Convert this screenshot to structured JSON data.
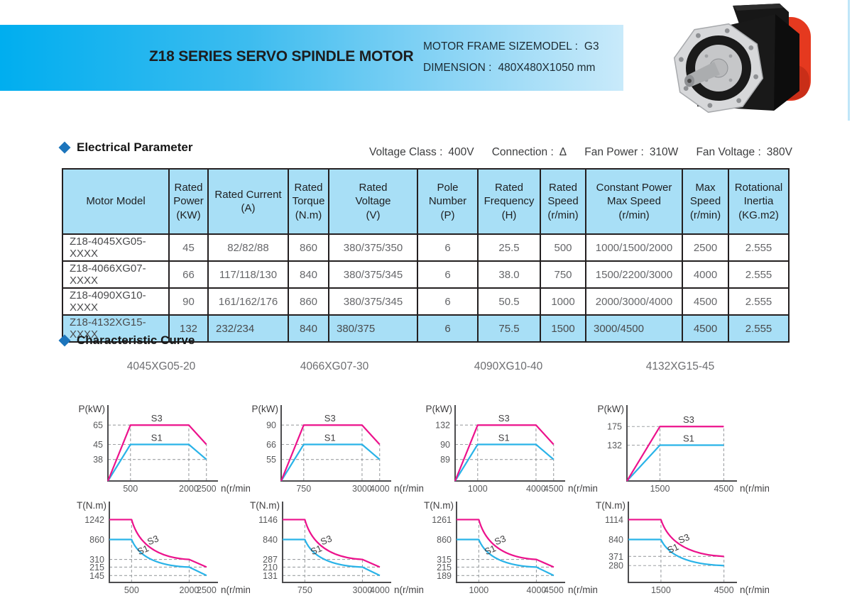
{
  "header": {
    "title": "Z18 SERIES SERVO SPINDLE MOTOR",
    "frame": {
      "label": "MOTOR FRAME SIZEMODEL :",
      "value": "G3"
    },
    "dimension": {
      "label": "DIMENSION :",
      "value": "480X480X1050 mm"
    }
  },
  "electrical": {
    "section_title": "Electrical Parameter",
    "specs": [
      {
        "label": "Voltage Class :",
        "value": "400V"
      },
      {
        "label": "Connection :",
        "value": "Δ"
      },
      {
        "label": "Fan Power :",
        "value": "310W"
      },
      {
        "label": "Fan Voltage :",
        "value": "380V"
      }
    ],
    "table": {
      "columns": [
        [
          "Motor Model"
        ],
        [
          "Rated",
          "Power",
          "(KW)"
        ],
        [
          "Rated  Current",
          "(A)"
        ],
        [
          "Rated",
          "Torque",
          "(N.m)"
        ],
        [
          "Rated",
          "Voltage",
          "(V)"
        ],
        [
          "Pole",
          "Number",
          "(P)"
        ],
        [
          "Rated",
          "Frequency",
          "(H)"
        ],
        [
          "Rated",
          "Speed",
          "(r/min)"
        ],
        [
          "Constant Power",
          "Max Speed",
          "(r/min)"
        ],
        [
          "Max",
          "Speed",
          "(r/min)"
        ],
        [
          "Rotational",
          "Inertia",
          "(KG.m2)"
        ]
      ],
      "rows": [
        [
          "Z18-4045XG05-XXXX",
          "45",
          "82/82/88",
          "860",
          "380/375/350",
          "6",
          "25.5",
          "500",
          "1000/1500/2000",
          "2500",
          "2.555"
        ],
        [
          "Z18-4066XG07-XXXX",
          "66",
          "117/118/130",
          "840",
          "380/375/345",
          "6",
          "38.0",
          "750",
          "1500/2200/3000",
          "4000",
          "2.555"
        ],
        [
          "Z18-4090XG10-XXXX",
          "90",
          "161/162/176",
          "860",
          "380/375/345",
          "6",
          "50.5",
          "1000",
          "2000/3000/4000",
          "4500",
          "2.555"
        ],
        [
          "Z18-4132XG15-XXXX",
          "132",
          "232/234",
          "840",
          "380/375",
          "6",
          "75.5",
          "1500",
          "3000/4500",
          "4500",
          "2.555"
        ]
      ],
      "highlighted_row_index": 3
    }
  },
  "curves": {
    "section_title": "Characteristic Curve",
    "model_titles": [
      "4045XG05-20",
      "4066XG07-30",
      "4090XG10-40",
      "4132XG15-45"
    ]
  },
  "chart_data": [
    {
      "type": "line",
      "group": "power",
      "model": "4045XG05-20",
      "ylabel": "P(kW)",
      "xlabel": "n(r/min)",
      "yticks": [
        65,
        45,
        38
      ],
      "xticks": [
        500,
        2000,
        2500
      ],
      "series": [
        {
          "name": "S3",
          "color": "#EC128C",
          "points": [
            [
              0,
              0
            ],
            [
              500,
              65
            ],
            [
              2000,
              65
            ],
            [
              2500,
              45
            ]
          ]
        },
        {
          "name": "S1",
          "color": "#29B3E8",
          "points": [
            [
              0,
              0
            ],
            [
              500,
              45
            ],
            [
              2000,
              45
            ],
            [
              2500,
              38
            ]
          ]
        }
      ]
    },
    {
      "type": "line",
      "group": "power",
      "model": "4066XG07-30",
      "ylabel": "P(kW)",
      "xlabel": "n(r/min)",
      "yticks": [
        90,
        66,
        55
      ],
      "xticks": [
        750,
        3000,
        4000
      ],
      "series": [
        {
          "name": "S3",
          "color": "#EC128C",
          "points": [
            [
              0,
              0
            ],
            [
              750,
              90
            ],
            [
              3000,
              90
            ],
            [
              4000,
              66
            ]
          ]
        },
        {
          "name": "S1",
          "color": "#29B3E8",
          "points": [
            [
              0,
              0
            ],
            [
              750,
              66
            ],
            [
              3000,
              66
            ],
            [
              4000,
              55
            ]
          ]
        }
      ]
    },
    {
      "type": "line",
      "group": "power",
      "model": "4090XG10-40",
      "ylabel": "P(kW)",
      "xlabel": "n(r/min)",
      "yticks": [
        132,
        90,
        89
      ],
      "xticks": [
        1000,
        4000,
        4500
      ],
      "series": [
        {
          "name": "S3",
          "color": "#EC128C",
          "points": [
            [
              0,
              0
            ],
            [
              1000,
              132
            ],
            [
              4000,
              132
            ],
            [
              4500,
              90
            ]
          ]
        },
        {
          "name": "S1",
          "color": "#29B3E8",
          "points": [
            [
              0,
              0
            ],
            [
              1000,
              90
            ],
            [
              4000,
              90
            ],
            [
              4500,
              89
            ]
          ]
        }
      ]
    },
    {
      "type": "line",
      "group": "power",
      "model": "4132XG15-45",
      "ylabel": "P(kW)",
      "xlabel": "n(r/min)",
      "yticks": [
        175,
        132
      ],
      "xticks": [
        1500,
        4500
      ],
      "series": [
        {
          "name": "S3",
          "color": "#EC128C",
          "points": [
            [
              0,
              0
            ],
            [
              1500,
              175
            ],
            [
              4500,
              175
            ]
          ]
        },
        {
          "name": "S1",
          "color": "#29B3E8",
          "points": [
            [
              0,
              0
            ],
            [
              1500,
              132
            ],
            [
              4500,
              132
            ]
          ]
        }
      ]
    },
    {
      "type": "line",
      "group": "torque",
      "model": "4045XG05-20",
      "ylabel": "T(N.m)",
      "xlabel": "n(r/min)",
      "yticks": [
        1242,
        860,
        310,
        215,
        145
      ],
      "xticks": [
        500,
        2000,
        2500
      ],
      "series": [
        {
          "name": "S3",
          "color": "#EC128C",
          "points": [
            [
              0,
              1242
            ],
            [
              500,
              1242
            ],
            [
              2000,
              310
            ],
            [
              2500,
              215
            ]
          ]
        },
        {
          "name": "S1",
          "color": "#29B3E8",
          "points": [
            [
              0,
              860
            ],
            [
              500,
              860
            ],
            [
              2000,
              215
            ],
            [
              2500,
              145
            ]
          ]
        }
      ]
    },
    {
      "type": "line",
      "group": "torque",
      "model": "4066XG07-30",
      "ylabel": "T(N.m)",
      "xlabel": "n(r/min)",
      "yticks": [
        1146,
        840,
        287,
        210,
        131
      ],
      "xticks": [
        750,
        3000,
        4000
      ],
      "series": [
        {
          "name": "S3",
          "color": "#EC128C",
          "points": [
            [
              0,
              1146
            ],
            [
              750,
              1146
            ],
            [
              3000,
              287
            ],
            [
              4000,
              210
            ]
          ]
        },
        {
          "name": "S1",
          "color": "#29B3E8",
          "points": [
            [
              0,
              840
            ],
            [
              750,
              840
            ],
            [
              3000,
              210
            ],
            [
              4000,
              131
            ]
          ]
        }
      ]
    },
    {
      "type": "line",
      "group": "torque",
      "model": "4090XG10-40",
      "ylabel": "T(N.m)",
      "xlabel": "n(r/min)",
      "yticks": [
        1261,
        860,
        315,
        215,
        189
      ],
      "xticks": [
        1000,
        4000,
        4500
      ],
      "series": [
        {
          "name": "S3",
          "color": "#EC128C",
          "points": [
            [
              0,
              1261
            ],
            [
              1000,
              1261
            ],
            [
              4000,
              315
            ],
            [
              4500,
              215
            ]
          ]
        },
        {
          "name": "S1",
          "color": "#29B3E8",
          "points": [
            [
              0,
              860
            ],
            [
              1000,
              860
            ],
            [
              4000,
              215
            ],
            [
              4500,
              189
            ]
          ]
        }
      ]
    },
    {
      "type": "line",
      "group": "torque",
      "model": "4132XG15-45",
      "ylabel": "T(N.m)",
      "xlabel": "n(r/min)",
      "yticks": [
        1114,
        840,
        371,
        280
      ],
      "xticks": [
        1500,
        4500
      ],
      "series": [
        {
          "name": "S3",
          "color": "#EC128C",
          "points": [
            [
              0,
              1114
            ],
            [
              1500,
              1114
            ],
            [
              4500,
              371
            ]
          ]
        },
        {
          "name": "S1",
          "color": "#29B3E8",
          "points": [
            [
              0,
              840
            ],
            [
              1500,
              840
            ],
            [
              4500,
              280
            ]
          ]
        }
      ]
    }
  ],
  "colors": {
    "accent_blue": "#00AEEF",
    "diamond_blue": "#1C75BC",
    "table_header_bg": "#A8DFF6",
    "highlight_row_bg": "#A8DFF6",
    "series_s3": "#EC128C",
    "series_s1": "#29B3E8"
  }
}
